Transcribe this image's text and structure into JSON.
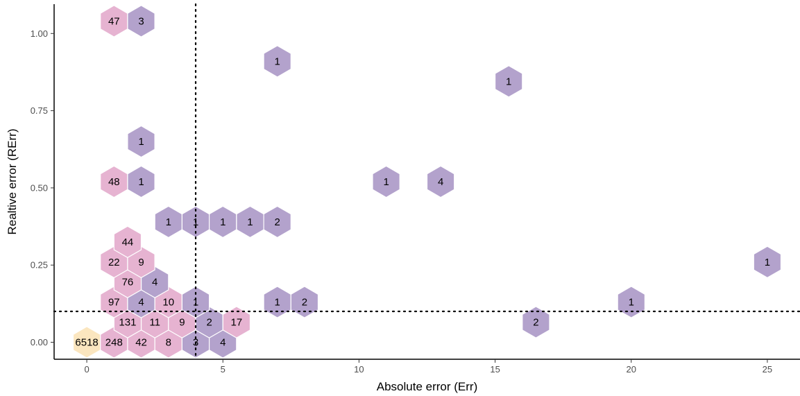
{
  "chart_data": {
    "type": "hexbin",
    "xlabel": "Absolute error (Err)",
    "ylabel": "Realtive error (RErr)",
    "xlim": [
      -1.2,
      26.2
    ],
    "ylim": [
      -0.055,
      1.095
    ],
    "x_ticks": [
      0,
      5,
      10,
      15,
      20,
      25
    ],
    "y_ticks": [
      0.0,
      0.25,
      0.5,
      0.75,
      1.0
    ],
    "x_tick_labels": [
      "0",
      "5",
      "10",
      "15",
      "20",
      "25"
    ],
    "y_tick_labels": [
      "0.00",
      "0.25",
      "0.50",
      "0.75",
      "1.00"
    ],
    "reference_lines": {
      "vertical_x": 4,
      "horizontal_y": 0.1,
      "style": "dotted"
    },
    "grid": false,
    "colors": {
      "purple": "#b3a2cc",
      "pink": "#e6b3d1",
      "cream": "#fbe6bf"
    },
    "bins": [
      {
        "x": 0,
        "y": 0.0,
        "count": "6518",
        "color": "cream"
      },
      {
        "x": 1,
        "y": 0.0,
        "count": "248",
        "color": "pink"
      },
      {
        "x": 2,
        "y": 0.0,
        "count": "42",
        "color": "pink"
      },
      {
        "x": 3,
        "y": 0.0,
        "count": "8",
        "color": "pink"
      },
      {
        "x": 4,
        "y": 0.0,
        "count": "3",
        "color": "purple"
      },
      {
        "x": 5,
        "y": 0.0,
        "count": "4",
        "color": "purple"
      },
      {
        "x": 1.5,
        "y": 0.065,
        "count": "131",
        "color": "pink"
      },
      {
        "x": 2.5,
        "y": 0.065,
        "count": "11",
        "color": "pink"
      },
      {
        "x": 3.5,
        "y": 0.065,
        "count": "9",
        "color": "pink"
      },
      {
        "x": 4.5,
        "y": 0.065,
        "count": "2",
        "color": "purple"
      },
      {
        "x": 5.5,
        "y": 0.065,
        "count": "17",
        "color": "pink"
      },
      {
        "x": 16.5,
        "y": 0.065,
        "count": "2",
        "color": "purple"
      },
      {
        "x": 1,
        "y": 0.13,
        "count": "97",
        "color": "pink"
      },
      {
        "x": 2,
        "y": 0.13,
        "count": "4",
        "color": "purple"
      },
      {
        "x": 3,
        "y": 0.13,
        "count": "10",
        "color": "pink"
      },
      {
        "x": 4,
        "y": 0.13,
        "count": "1",
        "color": "purple"
      },
      {
        "x": 7,
        "y": 0.13,
        "count": "1",
        "color": "purple"
      },
      {
        "x": 8,
        "y": 0.13,
        "count": "2",
        "color": "purple"
      },
      {
        "x": 20,
        "y": 0.13,
        "count": "1",
        "color": "purple"
      },
      {
        "x": 1.5,
        "y": 0.195,
        "count": "76",
        "color": "pink"
      },
      {
        "x": 2.5,
        "y": 0.195,
        "count": "4",
        "color": "purple"
      },
      {
        "x": 1,
        "y": 0.26,
        "count": "22",
        "color": "pink"
      },
      {
        "x": 2,
        "y": 0.26,
        "count": "9",
        "color": "pink"
      },
      {
        "x": 25,
        "y": 0.26,
        "count": "1",
        "color": "purple"
      },
      {
        "x": 1.5,
        "y": 0.325,
        "count": "44",
        "color": "pink"
      },
      {
        "x": 3,
        "y": 0.39,
        "count": "1",
        "color": "purple"
      },
      {
        "x": 4,
        "y": 0.39,
        "count": "1",
        "color": "purple"
      },
      {
        "x": 5,
        "y": 0.39,
        "count": "1",
        "color": "purple"
      },
      {
        "x": 6,
        "y": 0.39,
        "count": "1",
        "color": "purple"
      },
      {
        "x": 7,
        "y": 0.39,
        "count": "2",
        "color": "purple"
      },
      {
        "x": 1,
        "y": 0.52,
        "count": "48",
        "color": "pink"
      },
      {
        "x": 2,
        "y": 0.52,
        "count": "1",
        "color": "purple"
      },
      {
        "x": 11,
        "y": 0.52,
        "count": "1",
        "color": "purple"
      },
      {
        "x": 13,
        "y": 0.52,
        "count": "4",
        "color": "purple"
      },
      {
        "x": 2,
        "y": 0.65,
        "count": "1",
        "color": "purple"
      },
      {
        "x": 15.5,
        "y": 0.845,
        "count": "1",
        "color": "purple"
      },
      {
        "x": 7,
        "y": 0.91,
        "count": "1",
        "color": "purple"
      },
      {
        "x": 1,
        "y": 1.04,
        "count": "47",
        "color": "pink"
      },
      {
        "x": 2,
        "y": 1.04,
        "count": "3",
        "color": "purple"
      }
    ]
  }
}
